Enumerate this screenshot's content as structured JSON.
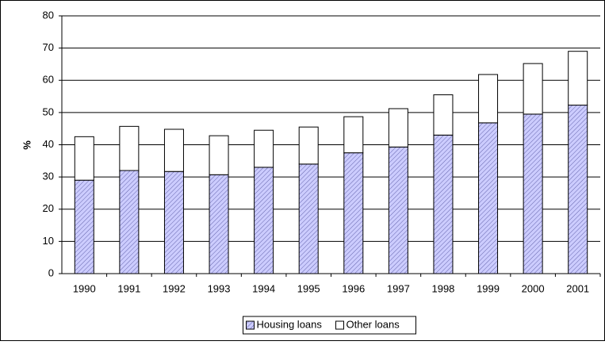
{
  "chart_data": {
    "type": "stacked_bar",
    "ylabel": "%",
    "categories": [
      "1990",
      "1991",
      "1992",
      "1993",
      "1994",
      "1995",
      "1996",
      "1997",
      "1998",
      "1999",
      "2000",
      "2001"
    ],
    "series": [
      {
        "name": "Housing loans",
        "color": "#ccccff",
        "values": [
          29,
          32,
          31.7,
          30.7,
          33,
          34,
          37.5,
          39.3,
          43,
          46.8,
          49.5,
          52.3
        ]
      },
      {
        "name": "Other loans",
        "color": "#ffffff",
        "values": [
          13.5,
          13.7,
          13.1,
          12.1,
          11.5,
          11.5,
          11.2,
          11.9,
          12.5,
          15,
          15.7,
          16.7
        ]
      }
    ],
    "ylim": [
      0,
      80
    ],
    "yticks": [
      0,
      10,
      20,
      30,
      40,
      50,
      60,
      70,
      80
    ],
    "grid": true,
    "legend": "bottom"
  }
}
